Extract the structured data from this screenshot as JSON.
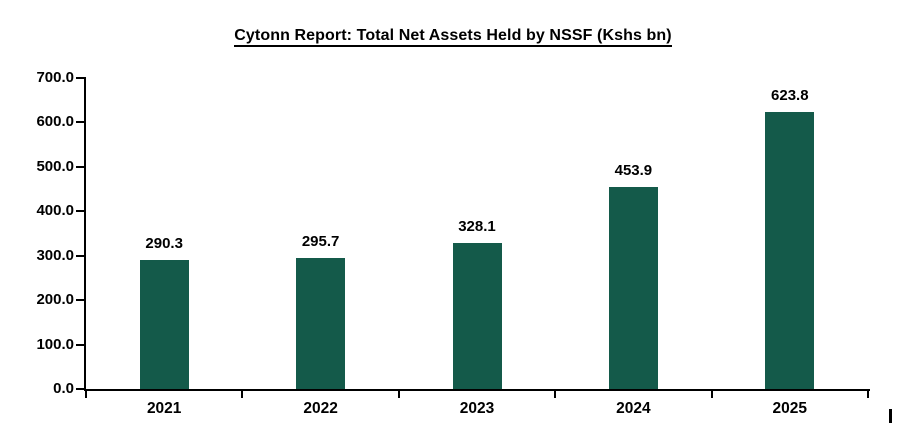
{
  "chart_data": {
    "type": "bar",
    "title": "Cytonn Report: Total Net Assets Held by NSSF (Kshs bn)",
    "categories": [
      "2021",
      "2022",
      "2023",
      "2024",
      "2025"
    ],
    "values": [
      290.3,
      295.7,
      328.1,
      453.9,
      623.8
    ],
    "data_labels": [
      "290.3",
      "295.7",
      "328.1",
      "453.9",
      "623.8"
    ],
    "xlabel": "",
    "ylabel": "",
    "ylim": [
      0,
      700
    ],
    "y_tick_step": 100,
    "y_tick_labels": [
      "0.0",
      "100.0",
      "200.0",
      "300.0",
      "400.0",
      "500.0",
      "600.0",
      "700.0"
    ],
    "grid": false,
    "legend_position": "none",
    "bar_color": "#145A4A",
    "axis_color": "#000000",
    "label_color": "#000000",
    "background_color": "#FFFFFF"
  }
}
